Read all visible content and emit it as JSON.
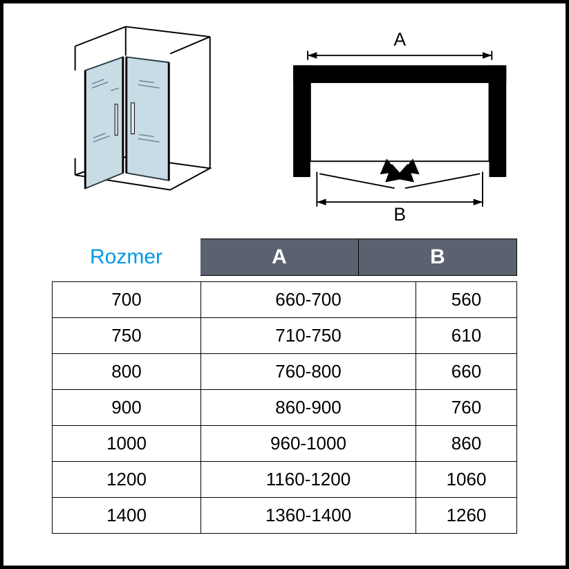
{
  "header": {
    "size_label": "Rozmer",
    "columns": [
      "A",
      "B"
    ]
  },
  "table": {
    "rows": [
      {
        "size": "700",
        "a": "660-700",
        "b": "560"
      },
      {
        "size": "750",
        "a": "710-750",
        "b": "610"
      },
      {
        "size": "800",
        "a": "760-800",
        "b": "660"
      },
      {
        "size": "900",
        "a": "860-900",
        "b": "760"
      },
      {
        "size": "1000",
        "a": "960-1000",
        "b": "860"
      },
      {
        "size": "1200",
        "a": "1160-1200",
        "b": "1060"
      },
      {
        "size": "1400",
        "a": "1360-1400",
        "b": "1260"
      }
    ]
  },
  "diagram": {
    "labels": {
      "top": "A",
      "bottom": "B"
    },
    "colors": {
      "frame": "#000000",
      "glass": "#c8dce6",
      "glass_edge": "#8fa8b3",
      "accent": "#0099e5",
      "table_header_bg": "#5a6270",
      "table_header_fg": "#ffffff",
      "text": "#000000",
      "background": "#ffffff"
    },
    "fonts": {
      "label_size_pt": 28,
      "header_size_pt": 30,
      "cell_size_pt": 26,
      "diagram_label_size_pt": 22
    }
  }
}
